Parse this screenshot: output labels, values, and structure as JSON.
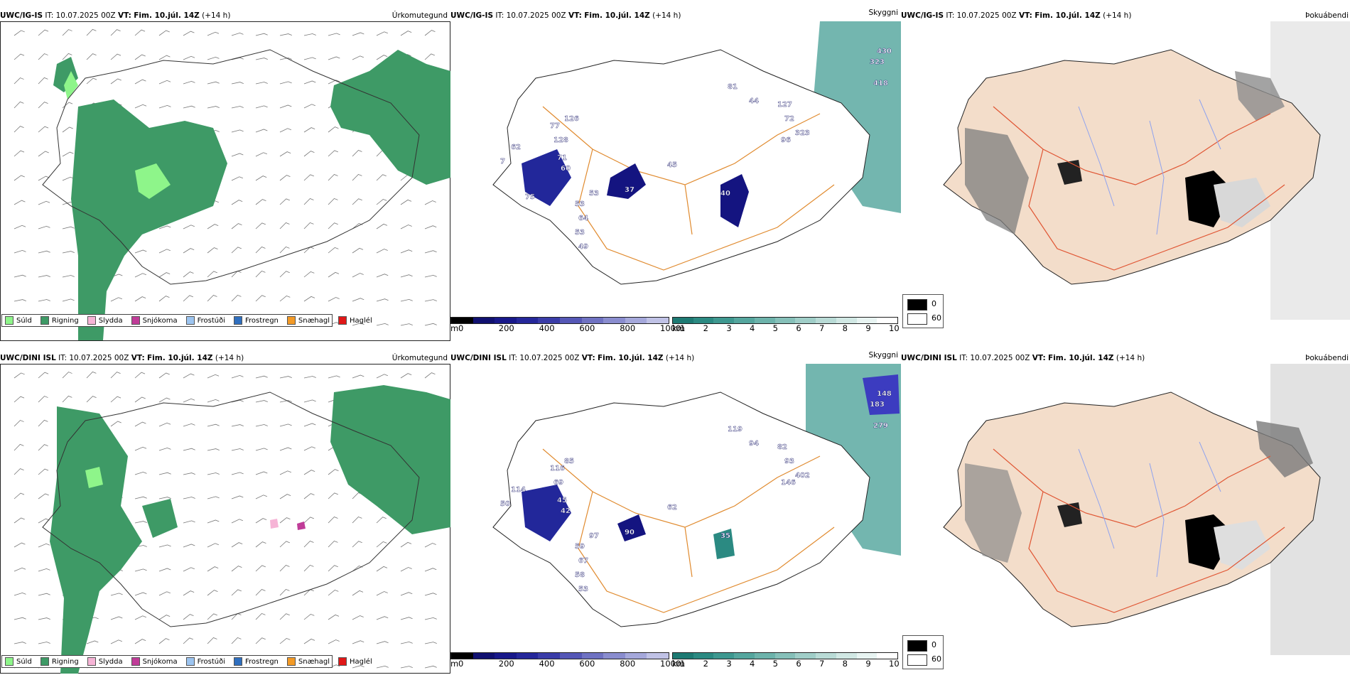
{
  "rows": [
    {
      "model": "UWC/IG-IS",
      "it_label": "IT:",
      "it_value": "10.07.2025 00Z",
      "vt_label": "VT:",
      "vt_value": "Fim. 10.júl. 14Z",
      "lead": "(+14 h)",
      "panels": [
        "Úrkomutegund",
        "Skyggni",
        "Þokuábendi"
      ],
      "cloud_labels": [
        "430",
        "323",
        "418",
        "81",
        "44",
        "127",
        "72",
        "323",
        "96",
        "126",
        "77",
        "128",
        "62",
        "60",
        "53",
        "37",
        "45",
        "40",
        "53",
        "64",
        "53",
        "49",
        "7",
        "71",
        "75"
      ]
    },
    {
      "model": "UWC/DINI ISL",
      "it_label": "IT:",
      "it_value": "10.07.2025 00Z",
      "vt_label": "VT:",
      "vt_value": "Fim. 10.júl. 14Z",
      "lead": "(+14 h)",
      "panels": [
        "Úrkomutegund",
        "Skyggni",
        "Þokuábendi"
      ],
      "cloud_labels": [
        "148",
        "183",
        "279",
        "119",
        "94",
        "82",
        "93",
        "402",
        "146",
        "85",
        "116",
        "69",
        "114",
        "42",
        "97",
        "90",
        "62",
        "35",
        "59",
        "67",
        "58",
        "53",
        "50",
        "45"
      ]
    }
  ],
  "precip_legend": [
    {
      "label": "Súld",
      "color": "#8ef58a"
    },
    {
      "label": "Rigning",
      "color": "#3e9a66"
    },
    {
      "label": "Slydda",
      "color": "#f6b4d6"
    },
    {
      "label": "Snjókoma",
      "color": "#c03c98"
    },
    {
      "label": "Frostúði",
      "color": "#9cc4f0"
    },
    {
      "label": "Frostregn",
      "color": "#2f6fbf"
    },
    {
      "label": "Snæhagl",
      "color": "#f39a26"
    },
    {
      "label": "Haglél",
      "color": "#e01818"
    }
  ],
  "ceiling_bar": {
    "unit": "m",
    "ticks": [
      "0",
      "200",
      "400",
      "600",
      "800",
      "1000"
    ],
    "colors": [
      "#000000",
      "#101070",
      "#18188a",
      "#25279a",
      "#3a3ca8",
      "#5557b6",
      "#6f72c2",
      "#8a8dcf",
      "#a5a8db",
      "#c0c2e6"
    ]
  },
  "vis_bar": {
    "unit": "km",
    "ticks": [
      "1",
      "2",
      "3",
      "4",
      "5",
      "6",
      "7",
      "8",
      "9",
      "10"
    ],
    "colors": [
      "#1d7a73",
      "#2b8a82",
      "#3e9890",
      "#55a69e",
      "#6db3ab",
      "#86c0b9",
      "#a0cec8",
      "#b9dbd6",
      "#d1e8e4",
      "#e8f4f2",
      "#ffffff"
    ]
  },
  "fog_legend": {
    "high": "0",
    "low": "60"
  }
}
